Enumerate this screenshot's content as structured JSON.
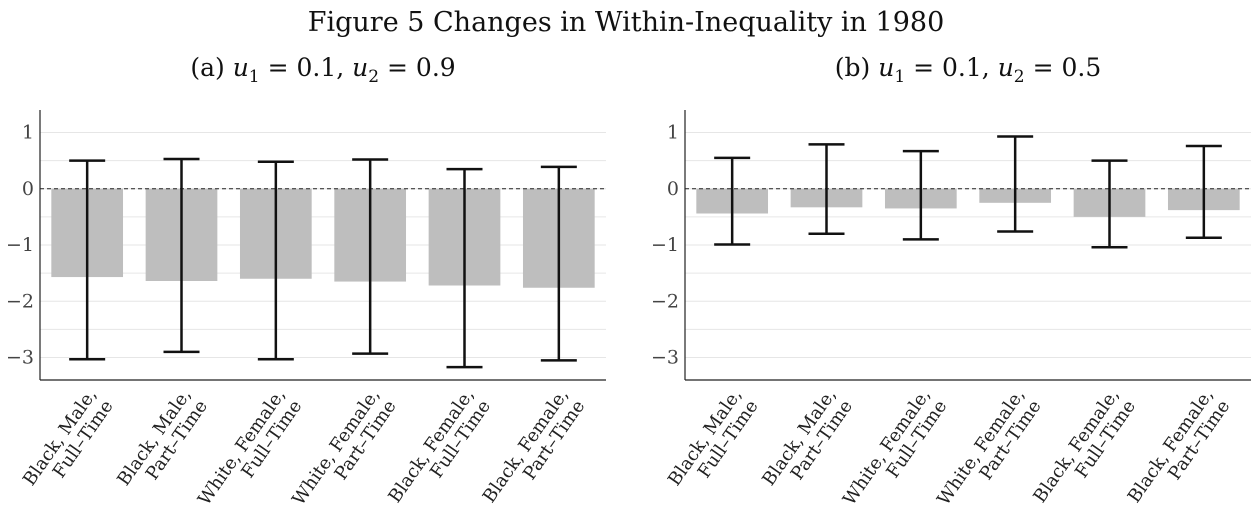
{
  "figure_title": "Figure 5 Changes in Within-Inequality in 1980",
  "chart_data": [
    {
      "type": "bar",
      "title": {
        "prefix": "(a)",
        "u1": "0.1",
        "u2": "0.9"
      },
      "categories": [
        [
          "Black, Male,",
          "Full–Time"
        ],
        [
          "Black, Male,",
          "Part–Time"
        ],
        [
          "White, Female,",
          "Full–Time"
        ],
        [
          "White, Female,",
          "Part–Time"
        ],
        [
          "Black, Female,",
          "Full–Time"
        ],
        [
          "Black, Female,",
          "Part–Time"
        ]
      ],
      "values": [
        -1.57,
        -1.64,
        -1.6,
        -1.65,
        -1.72,
        -1.76
      ],
      "ci_low": [
        -3.03,
        -2.9,
        -3.03,
        -2.93,
        -3.17,
        -3.05
      ],
      "ci_high": [
        0.5,
        0.53,
        0.48,
        0.52,
        0.35,
        0.39
      ],
      "yticks": [
        -3,
        -2,
        -1,
        0,
        1
      ],
      "ytick_labels": [
        "−3",
        "−2",
        "−1",
        "0",
        "1"
      ],
      "ylim": [
        -3.4,
        1.4
      ],
      "xlabel": "",
      "ylabel": "",
      "reference_line": 0,
      "bar_color": "#bebebe",
      "errorbar_color": "#111111"
    },
    {
      "type": "bar",
      "title": {
        "prefix": "(b)",
        "u1": "0.1",
        "u2": "0.5"
      },
      "categories": [
        [
          "Black, Male,",
          "Full–Time"
        ],
        [
          "Black, Male,",
          "Part–Time"
        ],
        [
          "White, Female,",
          "Full–Time"
        ],
        [
          "White, Female,",
          "Part–Time"
        ],
        [
          "Black, Female,",
          "Full–Time"
        ],
        [
          "Black, Female,",
          "Part–Time"
        ]
      ],
      "values": [
        -0.44,
        -0.33,
        -0.35,
        -0.25,
        -0.5,
        -0.38
      ],
      "ci_low": [
        -0.99,
        -0.8,
        -0.9,
        -0.76,
        -1.04,
        -0.87
      ],
      "ci_high": [
        0.55,
        0.79,
        0.67,
        0.93,
        0.5,
        0.76
      ],
      "yticks": [
        -3,
        -2,
        -1,
        0,
        1
      ],
      "ytick_labels": [
        "−3",
        "−2",
        "−1",
        "0",
        "1"
      ],
      "ylim": [
        -3.4,
        1.4
      ],
      "xlabel": "",
      "ylabel": "",
      "reference_line": 0,
      "bar_color": "#bebebe",
      "errorbar_color": "#111111"
    }
  ]
}
